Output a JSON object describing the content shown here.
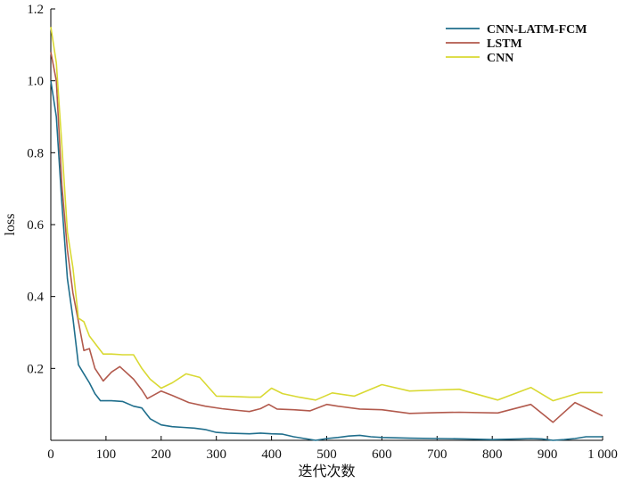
{
  "chart_data": {
    "type": "line",
    "xlabel": "迭代次数",
    "ylabel": "loss",
    "xlim": [
      0,
      1000
    ],
    "ylim": [
      0,
      1.2
    ],
    "x_ticks": [
      0,
      100,
      200,
      300,
      400,
      500,
      600,
      700,
      800,
      900,
      1000
    ],
    "x_tick_labels": [
      "0",
      "100",
      "200",
      "300",
      "400",
      "500",
      "600",
      "700",
      "800",
      "900",
      "1 000"
    ],
    "y_ticks": [
      0.2,
      0.4,
      0.6,
      0.8,
      1.0,
      1.2
    ],
    "y_tick_labels": [
      "0.2",
      "0.4",
      "0.6",
      "0.8",
      "1.0",
      "1.2"
    ],
    "grid": false,
    "legend_position": "top-right",
    "series": [
      {
        "name": "CNN-LATM-FCM",
        "color": "#1f6e8c",
        "x": [
          0,
          10,
          20,
          30,
          40,
          50,
          60,
          70,
          80,
          90,
          110,
          130,
          150,
          165,
          180,
          200,
          220,
          240,
          260,
          280,
          300,
          320,
          340,
          360,
          380,
          400,
          420,
          440,
          460,
          480,
          500,
          520,
          540,
          560,
          580,
          600,
          650,
          700,
          750,
          800,
          850,
          870,
          890,
          910,
          930,
          950,
          970,
          1000
        ],
        "y": [
          1.0,
          0.9,
          0.66,
          0.45,
          0.34,
          0.21,
          0.185,
          0.16,
          0.13,
          0.11,
          0.11,
          0.108,
          0.095,
          0.09,
          0.06,
          0.043,
          0.038,
          0.036,
          0.034,
          0.03,
          0.022,
          0.02,
          0.019,
          0.018,
          0.02,
          0.018,
          0.017,
          0.01,
          0.005,
          0.0,
          0.005,
          0.008,
          0.012,
          0.014,
          0.01,
          0.008,
          0.006,
          0.005,
          0.004,
          0.002,
          0.004,
          0.005,
          0.004,
          0.0,
          0.002,
          0.005,
          0.01,
          0.01
        ]
      },
      {
        "name": "LSTM",
        "color": "#b25a4d",
        "x": [
          0,
          10,
          20,
          30,
          40,
          50,
          60,
          70,
          80,
          95,
          110,
          125,
          150,
          165,
          175,
          200,
          220,
          250,
          280,
          310,
          340,
          360,
          380,
          395,
          410,
          440,
          470,
          500,
          520,
          560,
          600,
          650,
          700,
          740,
          810,
          870,
          910,
          950,
          1000
        ],
        "y": [
          1.08,
          1.0,
          0.71,
          0.53,
          0.41,
          0.33,
          0.25,
          0.255,
          0.2,
          0.165,
          0.19,
          0.205,
          0.17,
          0.14,
          0.116,
          0.137,
          0.125,
          0.105,
          0.095,
          0.088,
          0.083,
          0.08,
          0.088,
          0.1,
          0.087,
          0.085,
          0.082,
          0.1,
          0.095,
          0.087,
          0.085,
          0.075,
          0.077,
          0.078,
          0.076,
          0.1,
          0.05,
          0.105,
          0.068
        ]
      },
      {
        "name": "CNN",
        "color": "#d9d933",
        "x": [
          0,
          10,
          20,
          30,
          40,
          50,
          60,
          70,
          80,
          95,
          110,
          130,
          150,
          165,
          180,
          200,
          220,
          245,
          270,
          300,
          330,
          360,
          380,
          400,
          420,
          450,
          480,
          510,
          550,
          600,
          650,
          700,
          740,
          810,
          870,
          910,
          960,
          1000
        ],
        "y": [
          1.15,
          1.05,
          0.82,
          0.58,
          0.48,
          0.34,
          0.33,
          0.29,
          0.27,
          0.24,
          0.24,
          0.238,
          0.238,
          0.2,
          0.17,
          0.145,
          0.16,
          0.185,
          0.175,
          0.123,
          0.122,
          0.12,
          0.12,
          0.145,
          0.13,
          0.12,
          0.112,
          0.132,
          0.123,
          0.155,
          0.137,
          0.14,
          0.142,
          0.112,
          0.147,
          0.11,
          0.133,
          0.133
        ]
      }
    ]
  }
}
